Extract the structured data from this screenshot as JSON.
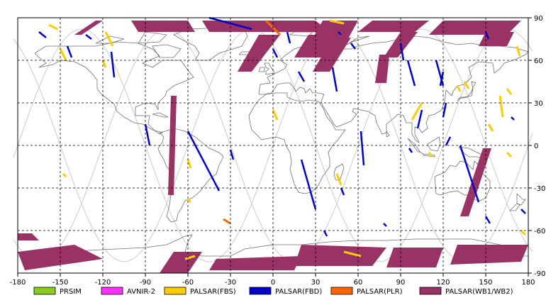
{
  "chart_data": {
    "type": "map",
    "projection": "equirectangular",
    "xlim": [
      -180,
      180
    ],
    "ylim": [
      -90,
      90
    ],
    "grid": true,
    "x_ticks": [
      "-180",
      "-150",
      "-120",
      "-90",
      "-60",
      "-30",
      "0",
      "30",
      "60",
      "90",
      "120",
      "150",
      "180"
    ],
    "y_ticks": [
      "90",
      "60",
      "30",
      "0",
      "-30",
      "-60",
      "-90"
    ],
    "colors": {
      "PRSIM": "#88cc22",
      "AVNIR-2": "#ff33ff",
      "PALSAR(FBS)": "#ffcc00",
      "PALSAR(FBD)": "#0000cc",
      "PALSAR(PLR)": "#ff6600",
      "PALSAR(WB1/WB2)": "#993366"
    },
    "legend": [
      {
        "label": "PRSIM",
        "color": "#88cc22"
      },
      {
        "label": "AVNIR-2",
        "color": "#ff33ff"
      },
      {
        "label": "PALSAR(FBS)",
        "color": "#ffcc00"
      },
      {
        "label": "PALSAR(FBD)",
        "color": "#0000cc"
      },
      {
        "label": "PALSAR(PLR)",
        "color": "#ff6600"
      },
      {
        "label": "PALSAR(WB1/WB2)",
        "color": "#993366"
      }
    ],
    "strips": {
      "fbd": [
        [
          -165,
          80,
          -160,
          76
        ],
        [
          -145,
          70,
          -142,
          62
        ],
        [
          -132,
          78,
          -128,
          75
        ],
        [
          -114,
          66,
          -112,
          48
        ],
        [
          -90,
          15,
          -87,
          0
        ],
        [
          -60,
          10,
          -38,
          -32
        ],
        [
          -45,
          90,
          -15,
          82
        ],
        [
          -30,
          -3,
          -28,
          -10
        ],
        [
          0,
          68,
          3,
          62
        ],
        [
          10,
          80,
          12,
          72
        ],
        [
          18,
          52,
          22,
          45
        ],
        [
          20,
          -10,
          30,
          -45
        ],
        [
          36,
          -60,
          38,
          -64
        ],
        [
          42,
          55,
          45,
          38
        ],
        [
          46,
          80,
          48,
          78
        ],
        [
          48,
          -30,
          50,
          -35
        ],
        [
          55,
          72,
          58,
          68
        ],
        [
          62,
          10,
          64,
          -14
        ],
        [
          78,
          -55,
          80,
          -57
        ],
        [
          90,
          72,
          92,
          60
        ],
        [
          95,
          60,
          100,
          42
        ],
        [
          96,
          -2,
          98,
          -5
        ],
        [
          105,
          25,
          102,
          12
        ],
        [
          115,
          60,
          120,
          42
        ],
        [
          120,
          52,
          118,
          42
        ],
        [
          122,
          30,
          120,
          20
        ],
        [
          125,
          6,
          122,
          0
        ],
        [
          145,
          -40,
          132,
          0
        ],
        [
          150,
          80,
          152,
          75
        ],
        [
          150,
          -50,
          153,
          -55
        ],
        [
          168,
          20,
          170,
          18
        ],
        [
          175,
          -45,
          178,
          -48
        ]
      ],
      "fbs": [
        [
          -158,
          85,
          -152,
          82
        ],
        [
          -150,
          68,
          -146,
          60
        ],
        [
          -118,
          80,
          -113,
          70
        ],
        [
          -60,
          -10,
          -58,
          -16
        ],
        [
          -60,
          -38,
          -58,
          -40
        ],
        [
          -120,
          60,
          -118,
          55
        ],
        [
          -148,
          -20,
          -146,
          -22
        ],
        [
          -62,
          -80,
          -55,
          -78
        ],
        [
          0,
          25,
          3,
          18
        ],
        [
          45,
          -20,
          48,
          -28
        ],
        [
          40,
          88,
          50,
          86
        ],
        [
          50,
          -75,
          62,
          -78
        ],
        [
          105,
          30,
          98,
          18
        ],
        [
          110,
          -5,
          112,
          -8
        ],
        [
          130,
          42,
          132,
          38
        ],
        [
          135,
          45,
          138,
          40
        ],
        [
          160,
          35,
          162,
          20
        ],
        [
          165,
          40,
          168,
          36
        ],
        [
          165,
          -5,
          168,
          -8
        ],
        [
          172,
          70,
          174,
          63
        ],
        [
          175,
          -60,
          178,
          -63
        ],
        [
          152,
          15,
          155,
          10
        ]
      ],
      "plr": [
        [
          -5,
          88,
          5,
          78
        ],
        [
          -35,
          -52,
          -30,
          -55
        ]
      ]
    },
    "swaths": [
      [
        -140,
        78,
        -135,
        78,
        -120,
        88,
        -125,
        88
      ],
      [
        -100,
        88,
        -60,
        88,
        -55,
        80,
        -95,
        80
      ],
      [
        -50,
        88,
        30,
        88,
        40,
        80,
        -45,
        80
      ],
      [
        -10,
        78,
        5,
        78,
        -15,
        52,
        -25,
        52
      ],
      [
        25,
        78,
        45,
        78,
        35,
        62,
        15,
        62
      ],
      [
        35,
        88,
        60,
        88,
        50,
        70,
        25,
        70
      ],
      [
        70,
        88,
        110,
        88,
        100,
        80,
        60,
        80
      ],
      [
        120,
        88,
        175,
        88,
        165,
        78,
        110,
        78
      ],
      [
        150,
        80,
        170,
        80,
        165,
        70,
        145,
        70
      ],
      [
        42,
        76,
        55,
        76,
        40,
        52,
        28,
        52
      ],
      [
        90,
        80,
        102,
        80,
        88,
        62,
        78,
        62
      ],
      [
        -72,
        35,
        -68,
        35,
        -70,
        -35,
        -74,
        -35
      ],
      [
        75,
        64,
        82,
        64,
        80,
        44,
        72,
        44
      ],
      [
        148,
        -2,
        154,
        -2,
        138,
        -50,
        132,
        -50
      ],
      [
        -180,
        -75,
        -140,
        -70,
        -120,
        -80,
        -175,
        -88
      ],
      [
        -70,
        -75,
        -50,
        -75,
        -60,
        -90,
        -80,
        -90
      ],
      [
        -40,
        -80,
        20,
        -78,
        15,
        -88,
        -45,
        -88
      ],
      [
        20,
        -70,
        80,
        -72,
        70,
        -85,
        15,
        -85
      ],
      [
        85,
        -72,
        120,
        -72,
        115,
        -86,
        80,
        -86
      ],
      [
        130,
        -70,
        180,
        -70,
        175,
        -82,
        125,
        -84
      ],
      [
        -180,
        -62,
        -170,
        -62,
        -165,
        -67,
        -180,
        -67
      ]
    ]
  }
}
